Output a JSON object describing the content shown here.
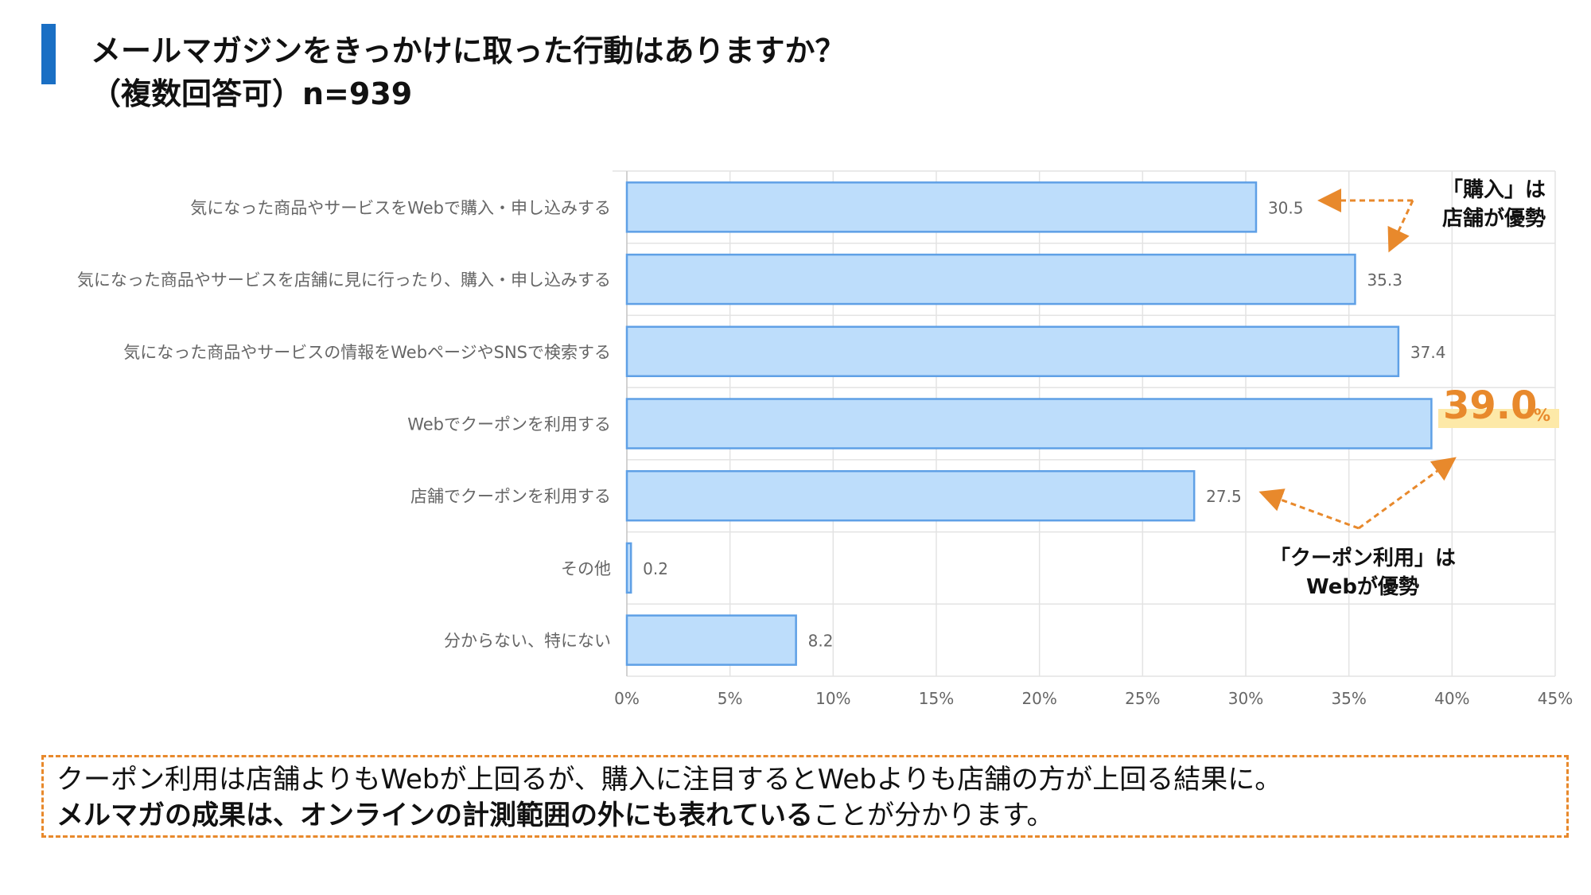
{
  "header": {
    "title": "メールマガジンをきっかけに取った行動はありますか？",
    "subtitle": "（複数回答可）n=939"
  },
  "chart_data": {
    "type": "bar",
    "orientation": "horizontal",
    "categories": [
      "気になった商品やサービスをWebで購入・申し込みする",
      "気になった商品やサービスを店舗に見に行ったり、購入・申し込みする",
      "気になった商品やサービスの情報をWebページやSNSで検索する",
      "Webでクーポンを利用する",
      "店舗でクーポンを利用する",
      "その他",
      "分からない、特にない"
    ],
    "values": [
      30.5,
      35.3,
      37.4,
      39.0,
      27.5,
      0.2,
      8.2
    ],
    "value_labels": [
      "30.5",
      "35.3",
      "37.4",
      "39.0",
      "27.5",
      "0.2",
      "8.2"
    ],
    "xlim": [
      0,
      45
    ],
    "ticks": [
      0,
      5,
      10,
      15,
      20,
      25,
      30,
      35,
      40,
      45
    ],
    "tick_labels": [
      "0%",
      "5%",
      "10%",
      "15%",
      "20%",
      "25%",
      "30%",
      "35%",
      "40%",
      "45%"
    ],
    "grid": true,
    "highlighted_index": 3,
    "colors": {
      "bar_fill": "#bdddfb",
      "bar_stroke": "#5fa0e6",
      "grid": "#e3e3e3",
      "accent": "#e8892c",
      "highlight": "#fde9a8"
    }
  },
  "annotations": {
    "purchase_callout": [
      "「購入」は",
      "店舗が優勢"
    ],
    "coupon_callout": [
      "「クーポン利用」は",
      "Webが優勢"
    ],
    "highlight_value": "39.0",
    "highlight_unit": "%"
  },
  "summary": {
    "line1": "クーポン利用は店舗よりもWebが上回るが、購入に注目するとWebよりも店舗の方が上回る結果に。",
    "line2_bold": "メルマガの成果は、オンラインの計測範囲の外にも表れている",
    "line2_rest": "ことが分かります。"
  }
}
